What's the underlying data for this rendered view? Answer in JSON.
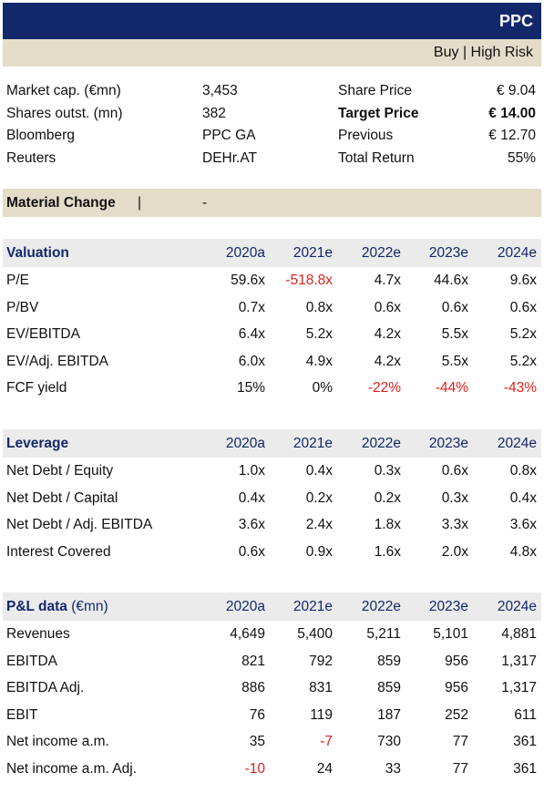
{
  "header": {
    "ticker": "PPC",
    "rating": "Buy | High Risk"
  },
  "info": [
    {
      "label": "Market cap. (€mn)",
      "value": "3,453",
      "label2": "Share Price",
      "value2": "€ 9.04",
      "bold2": false
    },
    {
      "label": "Shares outst. (mn)",
      "value": "382",
      "label2": "Target Price",
      "value2": "€ 14.00",
      "bold2": true
    },
    {
      "label": "Bloomberg",
      "value": "PPC GA",
      "label2": "Previous",
      "value2": "€ 12.70",
      "bold2": false
    },
    {
      "label": "Reuters",
      "value": "DEHr.AT",
      "label2": "Total Return",
      "value2": "55%",
      "bold2": false
    }
  ],
  "material_change": {
    "label": "Material Change",
    "separator": "|",
    "value": "-"
  },
  "sections": [
    {
      "title": "Valuation",
      "unit": "",
      "years": [
        "2020a",
        "2021e",
        "2022e",
        "2023e",
        "2024e"
      ],
      "rows": [
        {
          "name": "P/E",
          "values": [
            "59.6x",
            "-518.8x",
            "4.7x",
            "44.6x",
            "9.6x"
          ]
        },
        {
          "name": "P/BV",
          "values": [
            "0.7x",
            "0.8x",
            "0.6x",
            "0.6x",
            "0.6x"
          ]
        },
        {
          "name": "EV/EBITDA",
          "values": [
            "6.4x",
            "5.2x",
            "4.2x",
            "5.5x",
            "5.2x"
          ]
        },
        {
          "name": "EV/Adj. EBITDA",
          "values": [
            "6.0x",
            "4.9x",
            "4.2x",
            "5.5x",
            "5.2x"
          ]
        },
        {
          "name": "FCF yield",
          "values": [
            "15%",
            "0%",
            "-22%",
            "-44%",
            "-43%"
          ]
        }
      ]
    },
    {
      "title": "Leverage",
      "unit": "",
      "years": [
        "2020a",
        "2021e",
        "2022e",
        "2023e",
        "2024e"
      ],
      "rows": [
        {
          "name": "Net Debt / Equity",
          "values": [
            "1.0x",
            "0.4x",
            "0.3x",
            "0.6x",
            "0.8x"
          ]
        },
        {
          "name": "Net Debt / Capital",
          "values": [
            "0.4x",
            "0.2x",
            "0.2x",
            "0.3x",
            "0.4x"
          ]
        },
        {
          "name": "Net Debt / Adj. EBITDA",
          "values": [
            "3.6x",
            "2.4x",
            "1.8x",
            "3.3x",
            "3.6x"
          ]
        },
        {
          "name": "Interest Covered",
          "values": [
            "0.6x",
            "0.9x",
            "1.6x",
            "2.0x",
            "4.8x"
          ]
        }
      ]
    },
    {
      "title": "P&L data",
      "unit": "(€mn)",
      "years": [
        "2020a",
        "2021e",
        "2022e",
        "2023e",
        "2024e"
      ],
      "rows": [
        {
          "name": "Revenues",
          "values": [
            "4,649",
            "5,400",
            "5,211",
            "5,101",
            "4,881"
          ]
        },
        {
          "name": "EBITDA",
          "values": [
            "821",
            "792",
            "859",
            "956",
            "1,317"
          ]
        },
        {
          "name": "EBITDA Adj.",
          "values": [
            "886",
            "831",
            "859",
            "956",
            "1,317"
          ]
        },
        {
          "name": "EBIT",
          "values": [
            "76",
            "119",
            "187",
            "252",
            "611"
          ]
        },
        {
          "name": "Net income a.m.",
          "values": [
            "35",
            "-7",
            "730",
            "77",
            "361"
          ]
        },
        {
          "name": "Net income a.m. Adj.",
          "values": [
            "-10",
            "24",
            "33",
            "77",
            "361"
          ]
        }
      ]
    }
  ],
  "colors": {
    "header_bg": "#13286b",
    "band_bg": "#e3dcc8",
    "section_bg": "#ebebeb",
    "negative": "#e0201b"
  }
}
